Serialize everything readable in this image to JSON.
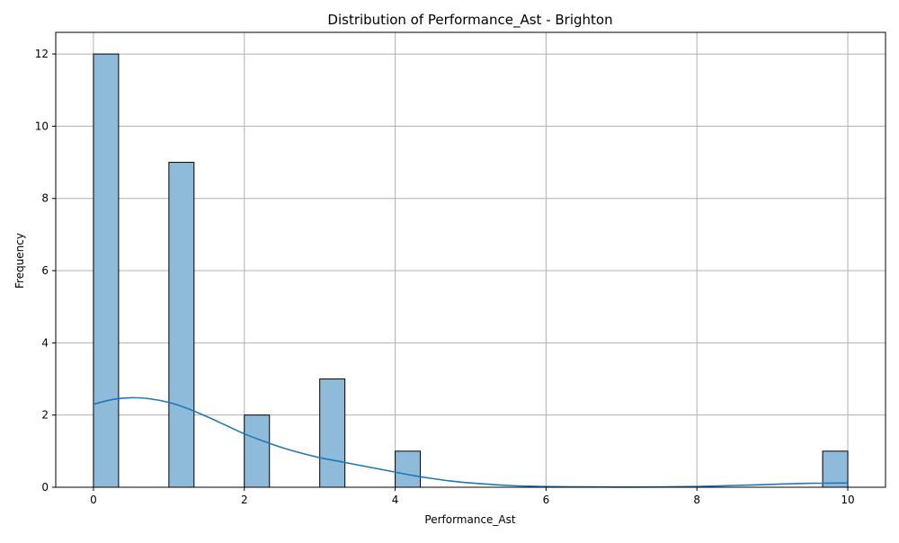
{
  "chart_data": {
    "type": "bar",
    "title": "Distribution of Performance_Ast - Brighton",
    "xlabel": "Performance_Ast",
    "ylabel": "Frequency",
    "xlim": [
      -0.5,
      10.5
    ],
    "ylim": [
      0,
      12.6
    ],
    "xticks": [
      0,
      2,
      4,
      6,
      8,
      10
    ],
    "yticks": [
      0,
      2,
      4,
      6,
      8,
      10,
      12
    ],
    "grid": true,
    "bin_width": 0.3333,
    "bars": [
      {
        "x_start": 0.0,
        "x_end": 0.3333,
        "value": 12
      },
      {
        "x_start": 1.0,
        "x_end": 1.3333,
        "value": 9
      },
      {
        "x_start": 2.0,
        "x_end": 2.3333,
        "value": 2
      },
      {
        "x_start": 3.0,
        "x_end": 3.3333,
        "value": 3
      },
      {
        "x_start": 4.0,
        "x_end": 4.3333,
        "value": 1
      },
      {
        "x_start": 9.6667,
        "x_end": 10.0,
        "value": 1
      }
    ],
    "kde": {
      "x": [
        0,
        0.25,
        0.5,
        0.75,
        1,
        1.25,
        1.5,
        1.75,
        2,
        2.25,
        2.5,
        2.75,
        3,
        3.25,
        3.5,
        3.75,
        4,
        4.25,
        4.5,
        4.75,
        5,
        5.5,
        6,
        6.5,
        7,
        7.5,
        8,
        8.5,
        9,
        9.5,
        10
      ],
      "y": [
        2.3,
        2.43,
        2.48,
        2.45,
        2.35,
        2.18,
        1.96,
        1.72,
        1.48,
        1.28,
        1.1,
        0.95,
        0.82,
        0.72,
        0.62,
        0.52,
        0.42,
        0.32,
        0.24,
        0.17,
        0.12,
        0.05,
        0.02,
        0.01,
        0.005,
        0.008,
        0.02,
        0.05,
        0.08,
        0.11,
        0.12
      ]
    },
    "colors": {
      "bar_fill": "#8fbbdb",
      "bar_edge": "#000000",
      "kde_line": "#1f77b4",
      "grid": "#b0b0b0"
    }
  }
}
